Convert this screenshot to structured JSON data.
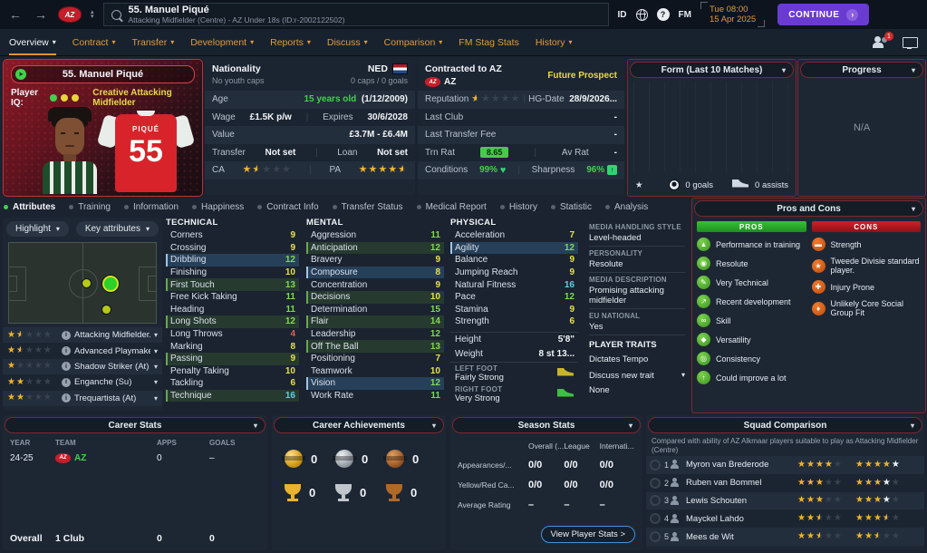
{
  "colors": {
    "accent_orange": "#e09a3c",
    "continue_purple": "#6a3bd0",
    "panel_border_red": "#7e2730",
    "attr_green": "#7ddb52",
    "attr_yellow": "#e8e14c",
    "attr_red": "#e06050",
    "attr_cyan": "#62cfe8",
    "star_gold": "#f0b42c",
    "pros_green": "#2eb82e",
    "cons_red": "#c01820",
    "con_icon_orange": "#e05c12",
    "age_green": "#3fd24a"
  },
  "topbar": {
    "club_badge_text": "AZ",
    "search_title": "55. Manuel Piqué",
    "search_subtitle": "Attacking Midfielder (Centre) - AZ Under 18s (ID:r-2002122502)",
    "id_label": "ID",
    "fm_label": "FM",
    "time": "Tue 08:00",
    "date": "15 Apr 2025",
    "continue_label": "CONTINUE"
  },
  "navbar": {
    "tabs": [
      {
        "label": "Overview",
        "active": true,
        "caret": true
      },
      {
        "label": "Contract",
        "caret": true
      },
      {
        "label": "Transfer",
        "caret": true
      },
      {
        "label": "Development",
        "caret": true
      },
      {
        "label": "Reports",
        "caret": true
      },
      {
        "label": "Discuss",
        "caret": true
      },
      {
        "label": "Comparison",
        "caret": true
      },
      {
        "label": "FM Stag Stats",
        "caret": false
      },
      {
        "label": "History",
        "caret": true
      }
    ],
    "notification_count": "1"
  },
  "player_card": {
    "header": "55. Manuel Piqué",
    "player_iq_label": "Player IQ:",
    "iq_dots": [
      "#3fd24a",
      "#e8d43c",
      "#e8d43c"
    ],
    "role_line": "Creative Attacking Midfielder",
    "shirt_name": "PIQUÉ",
    "shirt_number": "55"
  },
  "nationality_panel": {
    "nationality_label": "Nationality",
    "youth_caps": "No youth caps",
    "nation_code": "NED",
    "caps": "0 caps / 0 goals",
    "age_label": "Age",
    "age_value": "15 years old",
    "birth_date": "(1/12/2009)",
    "wage_label": "Wage",
    "wage_value": "£1.5K p/w",
    "expires_label": "Expires",
    "expires_value": "30/6/2028",
    "value_label": "Value",
    "value_value": "£3.7M - £6.4M",
    "transfer_label": "Transfer",
    "transfer_value": "Not set",
    "loan_label": "Loan",
    "loan_value": "Not set",
    "ca_label": "CA",
    "ca_stars": {
      "gold": 1,
      "half": true,
      "total": 5
    },
    "pa_label": "PA",
    "pa_stars": {
      "gold": 4,
      "half": true,
      "total": 5
    }
  },
  "contract_panel": {
    "contracted_to": "Contracted to AZ",
    "club": "AZ",
    "status": "Future Prospect",
    "reputation_label": "Reputation",
    "reputation_stars": {
      "gold": 0,
      "half": true,
      "total": 5
    },
    "hg_label": "HG-Date",
    "hg_value": "28/9/2026...",
    "last_club_label": "Last Club",
    "last_club_value": "-",
    "last_fee_label": "Last Transfer Fee",
    "last_fee_value": "-",
    "trn_label": "Trn Rat",
    "trn_value": "8.65",
    "av_label": "Av Rat",
    "av_value": "-",
    "cond_label": "Conditions",
    "cond_value": "99%",
    "sharp_label": "Sharpness",
    "sharp_value": "96%"
  },
  "form_panel": {
    "title": "Form (Last 10 Matches)",
    "goals": "0 goals",
    "assists": "0 assists"
  },
  "progress_panel": {
    "title": "Progress",
    "empty": "N/A"
  },
  "attributes_section": {
    "tabs": [
      {
        "label": "Attributes",
        "active": true
      },
      {
        "label": "Training"
      },
      {
        "label": "Information"
      },
      {
        "label": "Happiness"
      },
      {
        "label": "Contract Info"
      },
      {
        "label": "Transfer Status"
      },
      {
        "label": "Medical Report"
      },
      {
        "label": "History"
      },
      {
        "label": "Statistic"
      },
      {
        "label": "Analysis"
      }
    ],
    "highlight_label": "Highlight",
    "key_attr_label": "Key attributes",
    "roles": [
      {
        "stars": {
          "gold": 1,
          "half": true,
          "total": 5
        },
        "label": "Attacking Midfielder..."
      },
      {
        "stars": {
          "gold": 1,
          "half": true,
          "total": 5
        },
        "label": "Advanced Playmaker..."
      },
      {
        "stars": {
          "gold": 1,
          "half": false,
          "total": 5
        },
        "label": "Shadow Striker (At)"
      },
      {
        "stars": {
          "gold": 2,
          "half": false,
          "total": 5
        },
        "label": "Enganche (Su)"
      },
      {
        "stars": {
          "gold": 2,
          "half": false,
          "total": 5
        },
        "label": "Trequartista (At)"
      }
    ],
    "technical": {
      "header": "TECHNICAL",
      "items": [
        [
          "Corners",
          9,
          ""
        ],
        [
          "Crossing",
          9,
          ""
        ],
        [
          "Dribbling",
          12,
          "blue"
        ],
        [
          "Finishing",
          10,
          ""
        ],
        [
          "First Touch",
          13,
          "green"
        ],
        [
          "Free Kick Taking",
          11,
          ""
        ],
        [
          "Heading",
          11,
          ""
        ],
        [
          "Long Shots",
          12,
          "green"
        ],
        [
          "Long Throws",
          4,
          ""
        ],
        [
          "Marking",
          8,
          ""
        ],
        [
          "Passing",
          9,
          "green"
        ],
        [
          "Penalty Taking",
          10,
          ""
        ],
        [
          "Tackling",
          6,
          ""
        ],
        [
          "Technique",
          16,
          "green"
        ]
      ]
    },
    "mental": {
      "header": "MENTAL",
      "items": [
        [
          "Aggression",
          11,
          ""
        ],
        [
          "Anticipation",
          12,
          "green"
        ],
        [
          "Bravery",
          9,
          ""
        ],
        [
          "Composure",
          8,
          "blue"
        ],
        [
          "Concentration",
          9,
          ""
        ],
        [
          "Decisions",
          10,
          "green"
        ],
        [
          "Determination",
          15,
          ""
        ],
        [
          "Flair",
          14,
          "green"
        ],
        [
          "Leadership",
          12,
          ""
        ],
        [
          "Off The Ball",
          13,
          "green"
        ],
        [
          "Positioning",
          7,
          ""
        ],
        [
          "Teamwork",
          10,
          ""
        ],
        [
          "Vision",
          12,
          "blue"
        ],
        [
          "Work Rate",
          11,
          ""
        ]
      ]
    },
    "physical": {
      "header": "PHYSICAL",
      "items": [
        [
          "Acceleration",
          7,
          ""
        ],
        [
          "Agility",
          12,
          "blue"
        ],
        [
          "Balance",
          9,
          ""
        ],
        [
          "Jumping Reach",
          9,
          ""
        ],
        [
          "Natural Fitness",
          16,
          ""
        ],
        [
          "Pace",
          12,
          ""
        ],
        [
          "Stamina",
          9,
          ""
        ],
        [
          "Strength",
          6,
          ""
        ]
      ]
    },
    "body": {
      "height_label": "Height",
      "height": "5'8\"",
      "weight_label": "Weight",
      "weight": "8 st 13...",
      "left_foot_label": "LEFT FOOT",
      "left_foot": "Fairly Strong",
      "right_foot_label": "RIGHT FOOT",
      "right_foot": "Very Strong"
    },
    "media": {
      "handling_label": "MEDIA HANDLING STYLE",
      "handling": "Level-headed",
      "personality_label": "PERSONALITY",
      "personality": "Resolute",
      "description_label": "MEDIA DESCRIPTION",
      "description": "Promising attacking midfielder",
      "eu_label": "EU NATIONAL",
      "eu": "Yes",
      "traits_label": "PLAYER TRAITS",
      "trait": "Dictates Tempo",
      "discuss_label": "Discuss new trait",
      "discuss_value": "None"
    }
  },
  "pros_cons": {
    "title": "Pros and Cons",
    "pros_label": "PROS",
    "cons_label": "CONS",
    "pros": [
      {
        "icon": "training",
        "label": "Performance in training"
      },
      {
        "icon": "resolute",
        "label": "Resolute"
      },
      {
        "icon": "technical",
        "label": "Very Technical"
      },
      {
        "icon": "development",
        "label": "Recent development"
      },
      {
        "icon": "skill",
        "label": "Skill"
      },
      {
        "icon": "versatility",
        "label": "Versatility"
      },
      {
        "icon": "consistency",
        "label": "Consistency"
      },
      {
        "icon": "improve",
        "label": "Could improve a lot"
      }
    ],
    "cons": [
      {
        "icon": "strength",
        "label": "Strength"
      },
      {
        "icon": "standard",
        "label": "Tweede Divisie standard player."
      },
      {
        "icon": "injury",
        "label": "Injury Prone"
      },
      {
        "icon": "social",
        "label": "Unlikely Core Social Group Fit"
      }
    ]
  },
  "icon_glyphs": {
    "training": "▲",
    "resolute": "◉",
    "technical": "✎",
    "development": "↗",
    "skill": "∞",
    "versatility": "◆",
    "consistency": "◎",
    "improve": "↑",
    "strength": "▬",
    "standard": "★",
    "injury": "✚",
    "social": "♦"
  },
  "career_stats": {
    "title": "Career Stats",
    "headers": [
      "YEAR",
      "TEAM",
      "APPS",
      "GOALS"
    ],
    "rows": [
      [
        "24-25",
        "AZ",
        "0",
        "–"
      ]
    ],
    "overall_label": "Overall",
    "overall_team": "1 Club",
    "overall_apps": "0",
    "overall_goals": "0"
  },
  "career_achievements": {
    "title": "Career Achievements",
    "items": [
      {
        "icon": "gold-medal",
        "count": "0"
      },
      {
        "icon": "silver-medal",
        "count": "0"
      },
      {
        "icon": "bronze-medal",
        "count": "0"
      },
      {
        "icon": "gold-trophy",
        "count": "0"
      },
      {
        "icon": "silver-trophy",
        "count": "0"
      },
      {
        "icon": "bronze-trophy",
        "count": "0"
      }
    ]
  },
  "season_stats": {
    "title": "Season Stats",
    "col_headers": [
      "Overall (...",
      "League",
      "Internati..."
    ],
    "rows": [
      {
        "label": "Appearances/...",
        "values": [
          "0/0",
          "0/0",
          "0/0"
        ]
      },
      {
        "label": "Yellow/Red Ca...",
        "values": [
          "0/0",
          "0/0",
          "0/0"
        ]
      },
      {
        "label": "Average Rating",
        "values": [
          "–",
          "–",
          "–"
        ]
      }
    ],
    "button": "View Player Stats >"
  },
  "squad_comparison": {
    "title": "Squad Comparison",
    "subtitle": "Compared with ability of AZ Alkmaar players suitable to play as Attacking Midfielder (Centre)",
    "players": [
      {
        "rank": "1",
        "name": "Myron van Brederode",
        "ca": {
          "gold": 4,
          "total": 5
        },
        "pa": {
          "gold": 4,
          "white": 1,
          "total": 5
        }
      },
      {
        "rank": "2",
        "name": "Ruben van Bommel",
        "ca": {
          "gold": 3,
          "total": 5
        },
        "pa": {
          "gold": 3,
          "white": 1,
          "total": 5
        }
      },
      {
        "rank": "3",
        "name": "Lewis Schouten",
        "ca": {
          "gold": 3,
          "total": 5
        },
        "pa": {
          "gold": 3,
          "white": 1,
          "total": 5
        }
      },
      {
        "rank": "4",
        "name": "Mayckel Lahdo",
        "ca": {
          "gold": 2,
          "half": true,
          "total": 5
        },
        "pa": {
          "gold": 3,
          "half": true,
          "total": 5
        }
      },
      {
        "rank": "5",
        "name": "Mees de Wit",
        "ca": {
          "gold": 2,
          "half": true,
          "total": 5
        },
        "pa": {
          "gold": 2,
          "half": true,
          "total": 5
        }
      }
    ]
  }
}
